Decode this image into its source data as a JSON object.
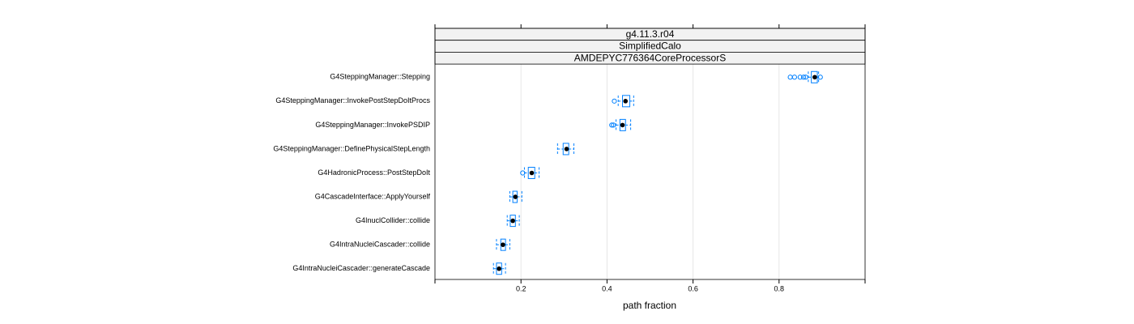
{
  "chart_data": {
    "type": "box",
    "strips": [
      "g4.11.3.r04",
      "SimplifiedCalo",
      "AMDEPYC776364CoreProcessorS"
    ],
    "xlabel": "path fraction",
    "categories": [
      "G4SteppingManager::Stepping",
      "G4SteppingManager::InvokePostStepDoItProcs",
      "G4SteppingManager::InvokePSDIP",
      "G4SteppingManager::DefinePhysicalStepLength",
      "G4HadronicProcess::PostStepDoIt",
      "G4CascadeInterface::ApplyYourself",
      "G4InuclCollider::collide",
      "G4IntraNucleiCascader::collide",
      "G4IntraNucleiCascader::generateCascade"
    ],
    "boxes": [
      {
        "min": 0.868,
        "q1": 0.875,
        "median": 0.883,
        "q3": 0.889,
        "max": 0.892,
        "outliers": [
          0.826,
          0.836,
          0.849,
          0.857,
          0.862,
          0.896
        ]
      },
      {
        "min": 0.426,
        "q1": 0.436,
        "median": 0.443,
        "q3": 0.453,
        "max": 0.462,
        "outliers": [
          0.417
        ]
      },
      {
        "min": 0.421,
        "q1": 0.43,
        "median": 0.436,
        "q3": 0.443,
        "max": 0.455,
        "outliers": [
          0.411,
          0.415
        ]
      },
      {
        "min": 0.285,
        "q1": 0.298,
        "median": 0.306,
        "q3": 0.311,
        "max": 0.323,
        "outliers": []
      },
      {
        "min": 0.208,
        "q1": 0.217,
        "median": 0.225,
        "q3": 0.232,
        "max": 0.242,
        "outliers": [
          0.204
        ]
      },
      {
        "min": 0.174,
        "q1": 0.181,
        "median": 0.187,
        "q3": 0.191,
        "max": 0.202,
        "outliers": []
      },
      {
        "min": 0.168,
        "q1": 0.175,
        "median": 0.181,
        "q3": 0.187,
        "max": 0.196,
        "outliers": []
      },
      {
        "min": 0.143,
        "q1": 0.153,
        "median": 0.158,
        "q3": 0.164,
        "max": 0.174,
        "outliers": []
      },
      {
        "min": 0.136,
        "q1": 0.143,
        "median": 0.149,
        "q3": 0.155,
        "max": 0.164,
        "outliers": []
      }
    ],
    "color": "#0080ff",
    "xlim": [
      0,
      1
    ],
    "xticks": [
      0.2,
      0.4,
      0.6,
      0.8
    ],
    "grid": true
  }
}
